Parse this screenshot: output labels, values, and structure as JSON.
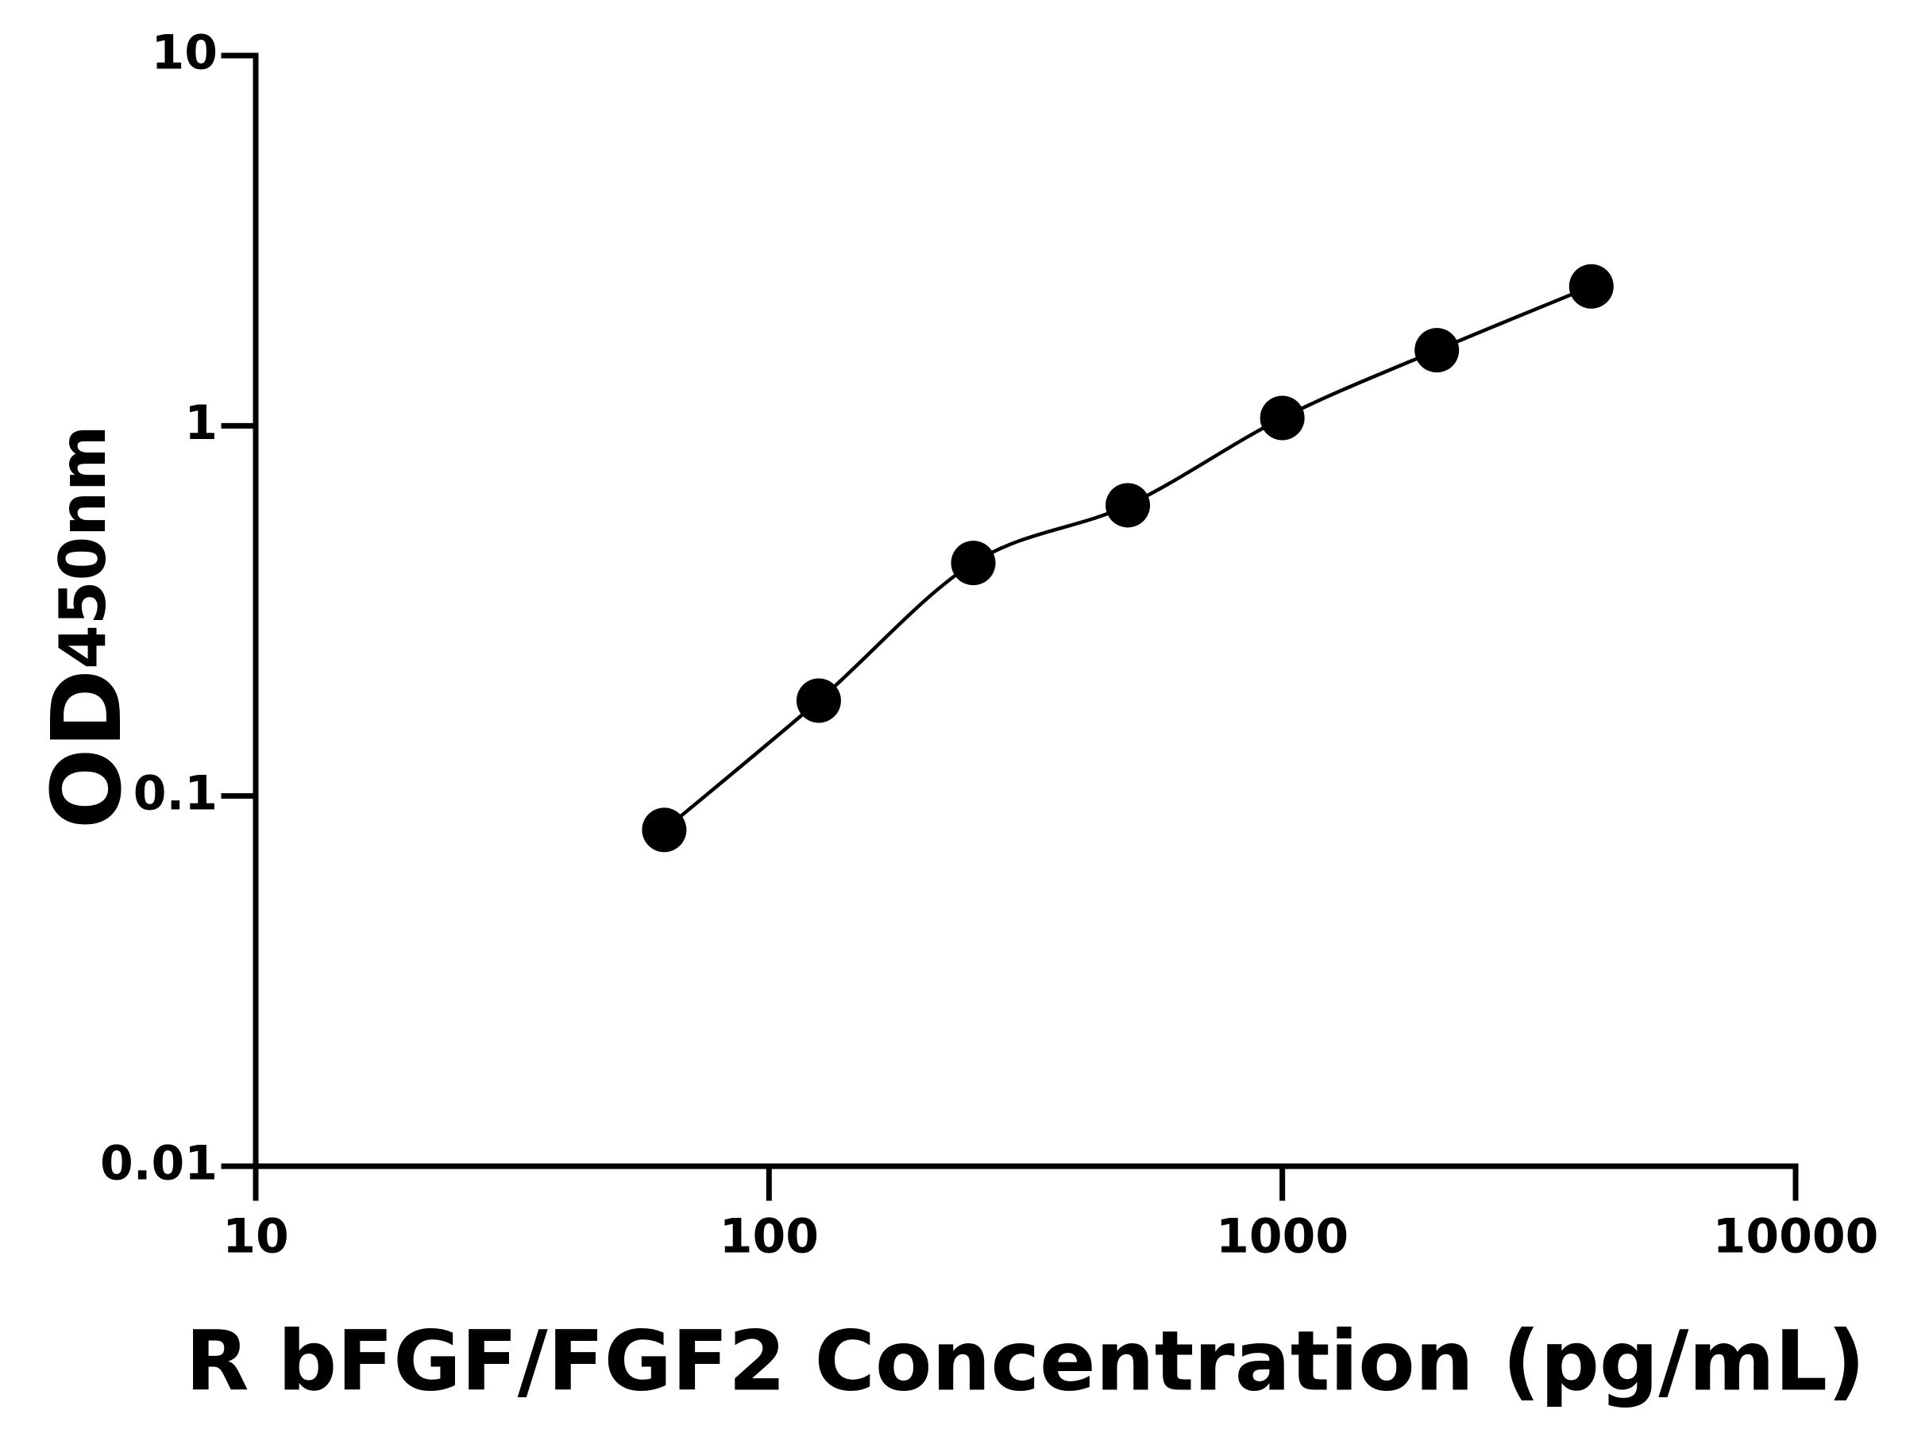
{
  "chart_data": {
    "type": "scatter",
    "xlabel": "R bFGF/FGF2 Concentration (pg/mL)",
    "ylabel": {
      "text": "OD",
      "subscript": "450nm"
    },
    "x": [
      62.5,
      125,
      250,
      500,
      1000,
      2000,
      4000
    ],
    "series": [
      {
        "color": "#000000",
        "values": [
          0.081,
          0.181,
          0.426,
          0.61,
          1.05,
          1.6,
          2.38
        ]
      }
    ],
    "xscale": "log",
    "yscale": "log",
    "xlim": [
      10,
      10000
    ],
    "xticks": [
      10,
      100,
      1000,
      10000
    ],
    "ylim": [
      0.01,
      10
    ],
    "yticks": [
      0.01,
      0.1,
      1,
      10
    ],
    "fit_curve": true,
    "grid": false
  }
}
